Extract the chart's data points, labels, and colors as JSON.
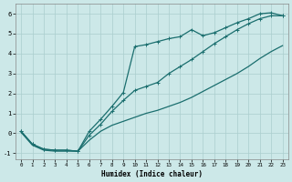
{
  "xlabel": "Humidex (Indice chaleur)",
  "bg_color": "#cce8e8",
  "grid_color": "#aacece",
  "line_color": "#1a6e6e",
  "xlim": [
    -0.5,
    23.5
  ],
  "ylim": [
    -1.3,
    6.5
  ],
  "xticks": [
    0,
    1,
    2,
    3,
    4,
    5,
    6,
    7,
    8,
    9,
    10,
    11,
    12,
    13,
    14,
    15,
    16,
    17,
    18,
    19,
    20,
    21,
    22,
    23
  ],
  "yticks": [
    -1,
    0,
    1,
    2,
    3,
    4,
    5,
    6
  ],
  "line1_x": [
    0,
    1,
    2,
    3,
    4,
    5,
    6,
    7,
    8,
    9,
    10,
    11,
    12,
    13,
    14,
    15,
    16,
    17,
    18,
    19,
    20,
    21,
    22,
    23
  ],
  "line1_y": [
    0.05,
    -0.6,
    -0.85,
    -0.9,
    -0.9,
    -0.9,
    -0.35,
    0.1,
    0.4,
    0.6,
    0.8,
    1.0,
    1.15,
    1.35,
    1.55,
    1.8,
    2.1,
    2.4,
    2.7,
    3.0,
    3.35,
    3.75,
    4.1,
    4.4
  ],
  "line2_x": [
    0,
    1,
    2,
    3,
    4,
    5,
    6,
    7,
    8,
    9,
    10,
    11,
    12,
    13,
    14,
    15,
    16,
    17,
    18,
    19,
    20,
    21,
    22,
    23
  ],
  "line2_y": [
    0.1,
    -0.55,
    -0.8,
    -0.85,
    -0.85,
    -0.9,
    -0.1,
    0.45,
    1.1,
    1.65,
    2.15,
    2.35,
    2.55,
    3.0,
    3.35,
    3.7,
    4.1,
    4.5,
    4.85,
    5.2,
    5.5,
    5.75,
    5.9,
    5.9
  ],
  "line3_x": [
    0,
    1,
    2,
    3,
    4,
    5,
    6,
    7,
    8,
    9,
    10,
    11,
    12,
    13,
    14,
    15,
    16,
    17,
    18,
    19,
    20,
    21,
    22,
    23
  ],
  "line3_y": [
    0.1,
    -0.55,
    -0.8,
    -0.85,
    -0.85,
    -0.9,
    0.1,
    0.7,
    1.35,
    2.05,
    4.35,
    4.45,
    4.6,
    4.75,
    4.85,
    5.2,
    4.9,
    5.05,
    5.3,
    5.55,
    5.75,
    6.0,
    6.05,
    5.9
  ]
}
